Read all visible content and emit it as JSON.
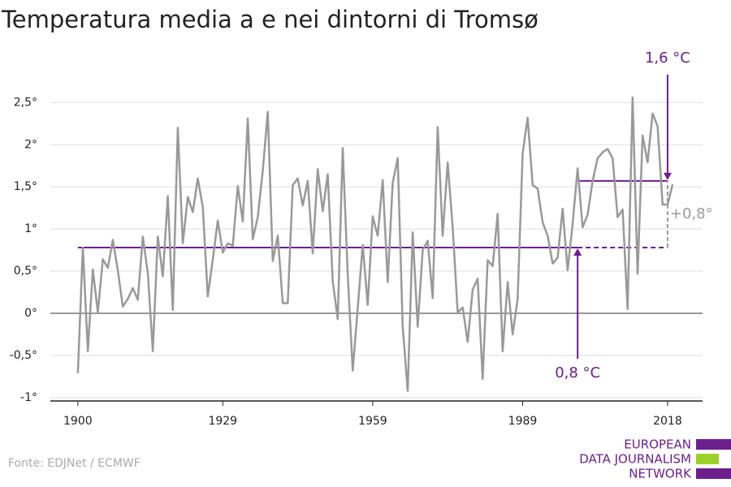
{
  "chart_data": {
    "type": "line",
    "title": "Temperatura media a e nei dintorni di Tromsø",
    "x": [
      1900,
      1901,
      1902,
      1903,
      1904,
      1905,
      1906,
      1907,
      1908,
      1909,
      1910,
      1911,
      1912,
      1913,
      1914,
      1915,
      1916,
      1917,
      1918,
      1919,
      1920,
      1921,
      1922,
      1923,
      1924,
      1925,
      1926,
      1927,
      1928,
      1929,
      1930,
      1931,
      1932,
      1933,
      1934,
      1935,
      1936,
      1937,
      1938,
      1939,
      1940,
      1941,
      1942,
      1943,
      1944,
      1945,
      1946,
      1947,
      1948,
      1949,
      1950,
      1951,
      1952,
      1953,
      1954,
      1955,
      1956,
      1957,
      1958,
      1959,
      1960,
      1961,
      1962,
      1963,
      1964,
      1965,
      1966,
      1967,
      1968,
      1969,
      1970,
      1971,
      1972,
      1973,
      1974,
      1975,
      1976,
      1977,
      1978,
      1979,
      1980,
      1981,
      1982,
      1983,
      1984,
      1985,
      1986,
      1987,
      1988,
      1989,
      1990,
      1991,
      1992,
      1993,
      1994,
      1995,
      1996,
      1997,
      1998,
      1999,
      2000,
      2001,
      2002,
      2003,
      2004,
      2005,
      2006,
      2007,
      2008,
      2009,
      2010,
      2011,
      2012,
      2013,
      2014,
      2015,
      2016,
      2017,
      2018,
      2019
    ],
    "series": [
      {
        "color": "#999999",
        "values": [
          -0.71,
          0.78,
          -0.45,
          0.52,
          0.01,
          0.64,
          0.54,
          0.87,
          0.51,
          0.08,
          0.17,
          0.3,
          0.16,
          0.91,
          0.48,
          -0.45,
          0.91,
          0.44,
          1.39,
          0.04,
          2.2,
          0.83,
          1.38,
          1.2,
          1.6,
          1.26,
          0.2,
          0.64,
          1.1,
          0.72,
          0.83,
          0.8,
          1.51,
          1.09,
          2.31,
          0.88,
          1.14,
          1.69,
          2.39,
          0.62,
          0.92,
          0.12,
          0.12,
          1.52,
          1.6,
          1.28,
          1.57,
          0.71,
          1.71,
          1.21,
          1.65,
          0.38,
          -0.07,
          1.96,
          0.46,
          -0.68,
          0.06,
          0.81,
          0.1,
          1.15,
          0.92,
          1.58,
          0.37,
          1.55,
          1.84,
          -0.16,
          -0.92,
          0.96,
          -0.16,
          0.75,
          0.86,
          0.18,
          2.21,
          0.92,
          1.79,
          1.02,
          0.01,
          0.07,
          -0.34,
          0.28,
          0.41,
          -0.78,
          0.63,
          0.56,
          1.18,
          -0.45,
          0.37,
          -0.25,
          0.17,
          1.9,
          2.32,
          1.52,
          1.48,
          1.08,
          0.92,
          0.59,
          0.66,
          1.24,
          0.51,
          1.06,
          1.72,
          1.02,
          1.17,
          1.57,
          1.84,
          1.91,
          1.95,
          1.84,
          1.14,
          1.23,
          0.05,
          2.56,
          0.47,
          2.11,
          1.79,
          2.37,
          2.22,
          1.29,
          1.29,
          1.53
        ]
      }
    ],
    "reference_lines": [
      {
        "value": 0.78,
        "label": "0,8 °C",
        "color": "#6a1f8a",
        "x_range": [
          1900,
          2018
        ],
        "solid_until": 2000
      },
      {
        "value": 1.57,
        "label": "1,6 °C",
        "color": "#6a1f8a",
        "x_range": [
          2000,
          2018
        ]
      }
    ],
    "difference": {
      "value": 0.79,
      "label": "+0,8°",
      "x": 2018,
      "color": "#999999"
    },
    "xlim": [
      1894.5,
      2025
    ],
    "xticks": [
      1900,
      1929,
      1959,
      1989,
      2018
    ],
    "ylim": [
      -1.04,
      2.85
    ],
    "yticks": [
      {
        "value": -1,
        "label": "-1°"
      },
      {
        "value": -0.5,
        "label": "-0,5°"
      },
      {
        "value": 0,
        "label": "0°"
      },
      {
        "value": 0.5,
        "label": "0,5°"
      },
      {
        "value": 1,
        "label": "1°"
      },
      {
        "value": 1.5,
        "label": "1,5°"
      },
      {
        "value": 2,
        "label": "2°"
      },
      {
        "value": 2.5,
        "label": "2,5°"
      }
    ],
    "grid": true,
    "source": "Fonte: EDJNet / ECMWF",
    "logo": [
      "EUROPEAN",
      "DATA JOURNALISM",
      "NETWORK"
    ]
  }
}
